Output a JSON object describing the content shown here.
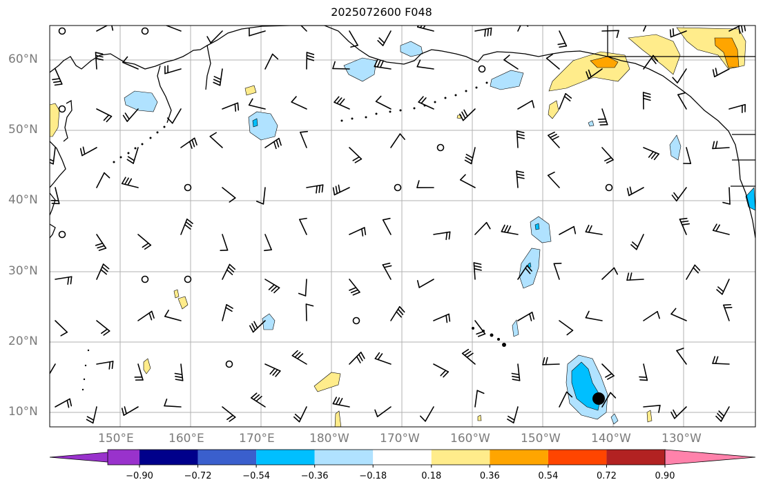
{
  "title": "2025072600 F048",
  "map": {
    "lat_labels": [
      "60°N",
      "50°N",
      "40°N",
      "30°N",
      "20°N",
      "10°N"
    ],
    "lon_labels": [
      "150°E",
      "160°E",
      "170°E",
      "180°W",
      "170°W",
      "160°W",
      "150°W",
      "140°W",
      "130°W"
    ],
    "marker_color": "#000000"
  },
  "colorbar": {
    "colors": [
      "#9932cc",
      "#00008b",
      "#3a5fcd",
      "#00bfff",
      "#b0e2ff",
      "#ffffff",
      "#ffec8b",
      "#ffa500",
      "#ff4500",
      "#b22222",
      "#ff82ab"
    ],
    "tick_labels": [
      "−0.90",
      "−0.72",
      "−0.54",
      "−0.36",
      "−0.18",
      "0.18",
      "0.36",
      "0.54",
      "0.72",
      "0.90"
    ]
  }
}
